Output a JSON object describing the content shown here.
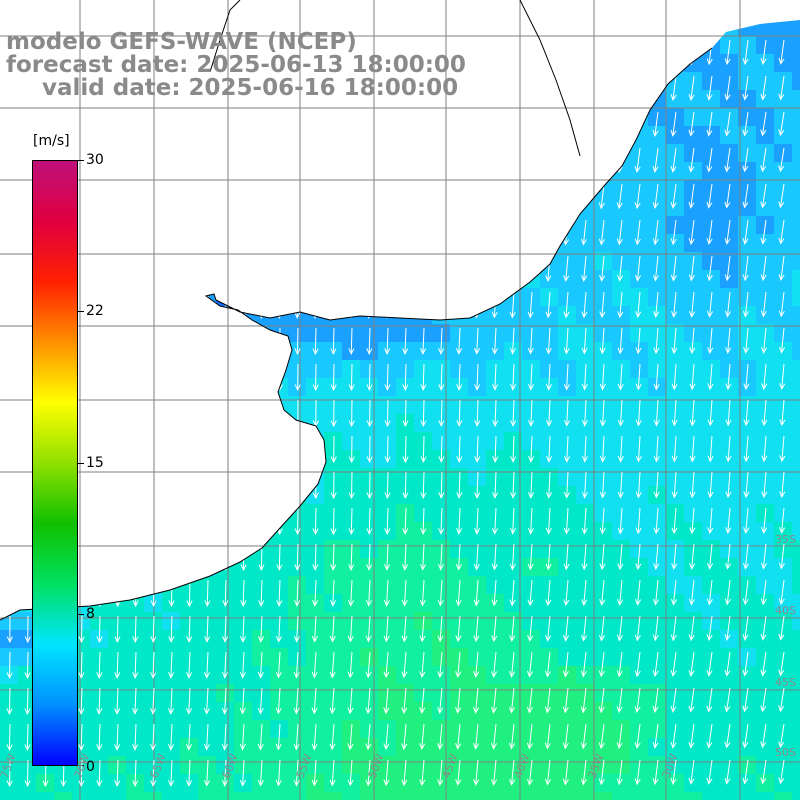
{
  "title": {
    "line1": "modelo GEFS-WAVE (NCEP)",
    "line2": "forecast date: 2025-06-13 18:00:00",
    "line3": "valid date: 2025-06-16 18:00:00"
  },
  "colorbar": {
    "units": "[m/s]",
    "min": 0,
    "max": 30,
    "tick_values": [
      "30",
      "22",
      "15",
      "8",
      "0"
    ],
    "colors": [
      "#0000ff",
      "#0090ff",
      "#00e5ff",
      "#00e060",
      "#10c000",
      "#90e000",
      "#ffff00",
      "#ff9000",
      "#ff2000",
      "#e00040",
      "#c0107a"
    ]
  },
  "map": {
    "land_color": "#ffffff",
    "coast_color": "#000000",
    "grid_color": "#7f7f7f",
    "arrow_color": "#ffffff",
    "lat_labels": [
      "35S",
      "40S",
      "45S",
      "50S"
    ],
    "lon_labels": [
      "75W",
      "70W",
      "65W",
      "60W",
      "55W",
      "50W",
      "45W",
      "40W",
      "35W",
      "30W"
    ]
  }
}
